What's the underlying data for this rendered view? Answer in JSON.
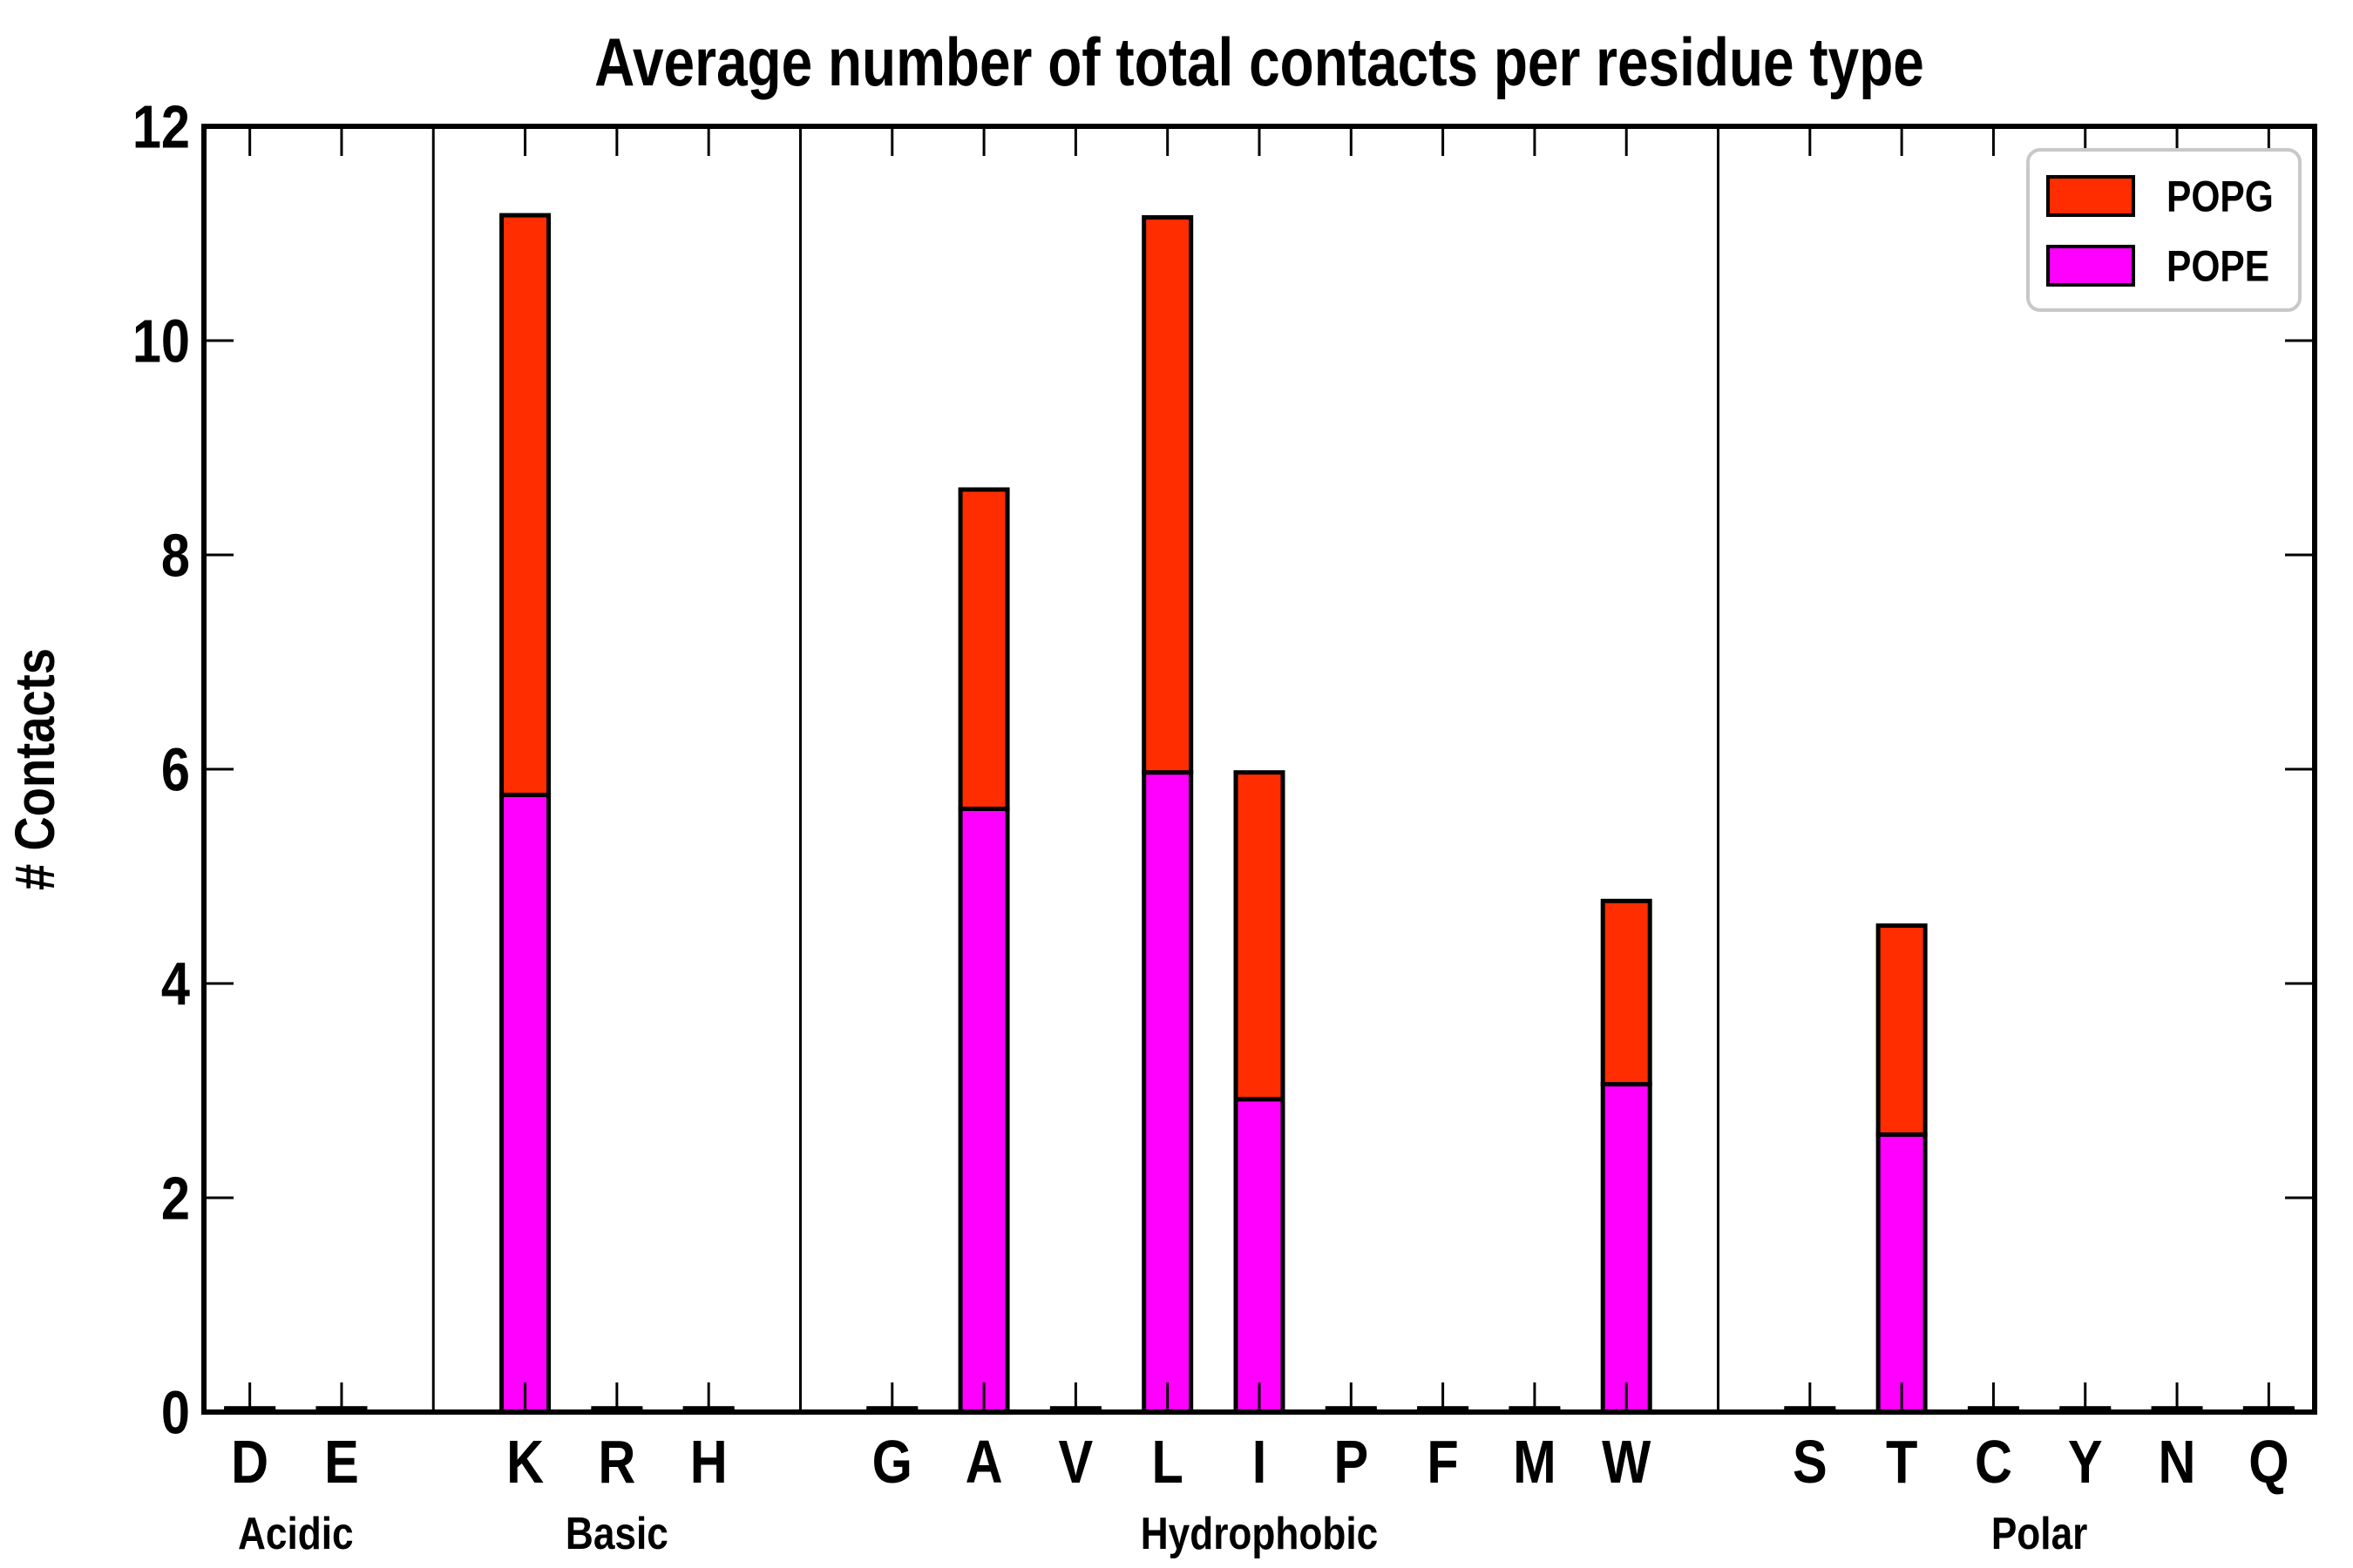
{
  "figure": {
    "background": "#ffffff",
    "border_color": "#000000"
  },
  "chart_data": {
    "type": "bar",
    "stacked": true,
    "title": "Average number of total contacts per residue type",
    "xlabel": "",
    "ylabel": "# Contacts",
    "ylim": [
      0,
      12
    ],
    "yticks": [
      0,
      2,
      4,
      6,
      8,
      10,
      12
    ],
    "grid": false,
    "legend_position": "top-right",
    "legend_border_color": "#c8c8c8",
    "bar_edge_color": "#000000",
    "categories": [
      "D",
      "E",
      "K",
      "R",
      "H",
      "G",
      "A",
      "V",
      "L",
      "I",
      "P",
      "F",
      "M",
      "W",
      "S",
      "T",
      "C",
      "Y",
      "N",
      "Q"
    ],
    "groups": [
      {
        "label": "Acidic",
        "residues": [
          "D",
          "E"
        ]
      },
      {
        "label": "Basic",
        "residues": [
          "K",
          "R",
          "H"
        ]
      },
      {
        "label": "Hydrophobic",
        "residues": [
          "G",
          "A",
          "V",
          "L",
          "I",
          "P",
          "F",
          "M",
          "W"
        ]
      },
      {
        "label": "Polar",
        "residues": [
          "S",
          "T",
          "C",
          "Y",
          "N",
          "Q"
        ]
      }
    ],
    "series": [
      {
        "name": "POPE",
        "color": "#ff00ff",
        "values": [
          0.02,
          0.02,
          5.76,
          0.02,
          0.02,
          0.02,
          5.63,
          0.02,
          5.97,
          2.92,
          0.02,
          0.02,
          0.02,
          3.06,
          0.02,
          2.59,
          0.02,
          0.02,
          0.02,
          0.02
        ]
      },
      {
        "name": "POPG",
        "color": "#ff2d00",
        "values": [
          0.015,
          0.015,
          5.41,
          0.015,
          0.015,
          0.015,
          2.98,
          0.015,
          5.18,
          3.05,
          0.015,
          0.015,
          0.015,
          1.71,
          0.015,
          1.95,
          0.015,
          0.015,
          0.015,
          0.015
        ]
      }
    ],
    "legend": [
      {
        "name": "POPG",
        "color": "#ff2d00"
      },
      {
        "name": "POPE",
        "color": "#ff00ff"
      }
    ]
  }
}
